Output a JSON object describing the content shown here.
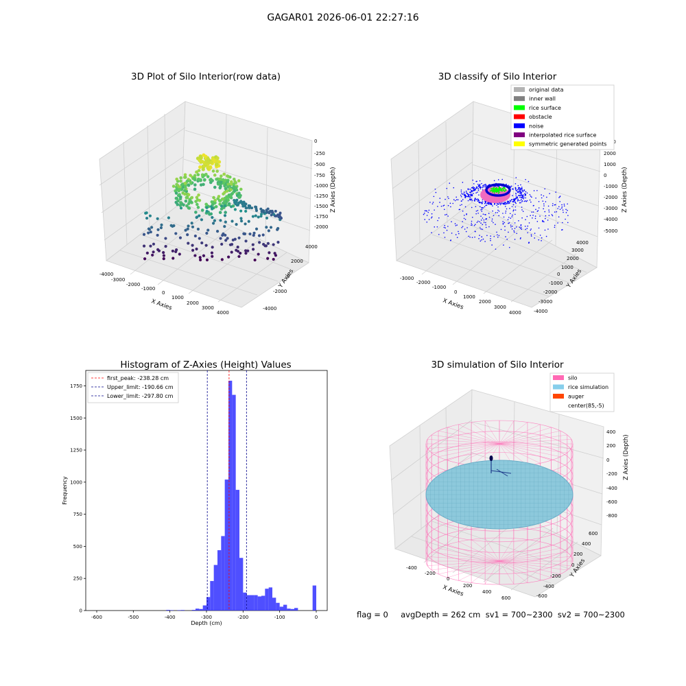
{
  "suptitle": "GAGAR01 2026-06-01 22:27:16",
  "panels": {
    "raw": {
      "title": "3D Plot of Silo Interior(row data)",
      "xlabel": "X Axies",
      "ylabel": "Y Axies",
      "zlabel": "Z Axies (Depth)",
      "xticks": [
        "−4000",
        "−3000",
        "−2000",
        "−1000",
        "0",
        "1000",
        "2000",
        "3000",
        "4000"
      ],
      "yticks": [
        "−4000",
        "−2000",
        "0",
        "2000",
        "4000"
      ],
      "zticks": [
        "0",
        "−250",
        "−500",
        "−750",
        "−1000",
        "−1250",
        "−1500",
        "−1750",
        "−2000"
      ]
    },
    "classify": {
      "title": "3D classify of Silo Interior",
      "xlabel": "X Axies",
      "ylabel": "Y Axies",
      "zlabel": "Z Axies (Depth)",
      "xticks": [
        "−3000",
        "−2000",
        "−1000",
        "0",
        "1000",
        "2000",
        "3000",
        "4000"
      ],
      "yticks": [
        "−4000",
        "−3000",
        "−2000",
        "−1000",
        "0",
        "1000",
        "2000",
        "3000",
        "4000"
      ],
      "zticks": [
        "3000",
        "2000",
        "1000",
        "0",
        "−1000",
        "−2000",
        "−3000",
        "−4000",
        "−5000"
      ],
      "legend": [
        {
          "label": "original data",
          "color": "#b3b3b3"
        },
        {
          "label": "inner wall",
          "color": "#808080"
        },
        {
          "label": "rice surface",
          "color": "#00ff00"
        },
        {
          "label": "obstacle",
          "color": "#ff0000"
        },
        {
          "label": "noise",
          "color": "#0000ff"
        },
        {
          "label": "interpolated rice surface",
          "color": "#800080"
        },
        {
          "label": "symmetric generated points",
          "color": "#ffff00"
        }
      ]
    },
    "simulation": {
      "title": "3D simulation of Silo Interior",
      "xlabel": "X Axies",
      "ylabel": "Y Axies",
      "zlabel": "Z Axies (Depth)",
      "xticks": [
        "−400",
        "−200",
        "0",
        "200",
        "400",
        "600"
      ],
      "yticks": [
        "−600",
        "−400",
        "−200",
        "0",
        "200",
        "400",
        "600"
      ],
      "zticks": [
        "400",
        "200",
        "0",
        "−200",
        "−400",
        "−600",
        "−800"
      ],
      "legend": [
        {
          "label": "silo",
          "color": "#ff69b4"
        },
        {
          "label": "rice simulation",
          "color": "#87ceeb"
        },
        {
          "label": "auger",
          "color": "#ff4500"
        },
        {
          "label": "center(85,-5)",
          "color": "#ffffff"
        }
      ],
      "info": "flag = 0     avgDepth = 262 cm  sv1 = 700~2300  sv2 = 700~2300"
    }
  },
  "chart_data": [
    {
      "type": "bar",
      "title": "Histogram of Z-Axies (Height) Values",
      "xlabel": "Depth (cm)",
      "ylabel": "Frequency",
      "xlim": [
        -630,
        30
      ],
      "ylim": [
        0,
        1870
      ],
      "xticks": [
        -600,
        -500,
        -400,
        -300,
        -200,
        -100,
        0
      ],
      "yticks": [
        0,
        250,
        500,
        750,
        1000,
        1250,
        1500,
        1750
      ],
      "bin_width": 10,
      "bins": [
        {
          "x": -410,
          "v": 5
        },
        {
          "x": -400,
          "v": 3
        },
        {
          "x": -380,
          "v": 3
        },
        {
          "x": -370,
          "v": 4
        },
        {
          "x": -340,
          "v": 5
        },
        {
          "x": -330,
          "v": 15
        },
        {
          "x": -320,
          "v": 12
        },
        {
          "x": -310,
          "v": 40
        },
        {
          "x": -300,
          "v": 105
        },
        {
          "x": -290,
          "v": 230
        },
        {
          "x": -280,
          "v": 355
        },
        {
          "x": -270,
          "v": 470
        },
        {
          "x": -260,
          "v": 580
        },
        {
          "x": -250,
          "v": 1020
        },
        {
          "x": -240,
          "v": 1790
        },
        {
          "x": -230,
          "v": 1680
        },
        {
          "x": -220,
          "v": 940
        },
        {
          "x": -210,
          "v": 410
        },
        {
          "x": -200,
          "v": 140
        },
        {
          "x": -190,
          "v": 120
        },
        {
          "x": -180,
          "v": 120
        },
        {
          "x": -170,
          "v": 120
        },
        {
          "x": -160,
          "v": 110
        },
        {
          "x": -150,
          "v": 115
        },
        {
          "x": -140,
          "v": 170
        },
        {
          "x": -130,
          "v": 180
        },
        {
          "x": -120,
          "v": 100
        },
        {
          "x": -110,
          "v": 60
        },
        {
          "x": -100,
          "v": 30
        },
        {
          "x": -90,
          "v": 45
        },
        {
          "x": -80,
          "v": 15
        },
        {
          "x": -70,
          "v": 12
        },
        {
          "x": -60,
          "v": 20
        },
        {
          "x": -10,
          "v": 195
        }
      ],
      "vlines": [
        {
          "label": "first_peak: -238.28 cm",
          "x": -238.28,
          "color": "#ff0000"
        },
        {
          "label": "Upper_limit: -190.66 cm",
          "x": -190.66,
          "color": "#00008b"
        },
        {
          "label": "Lower_limit: -297.80 cm",
          "x": -297.8,
          "color": "#00008b"
        }
      ],
      "bar_color": "#3030ff",
      "legend_position": "upper-left"
    }
  ]
}
